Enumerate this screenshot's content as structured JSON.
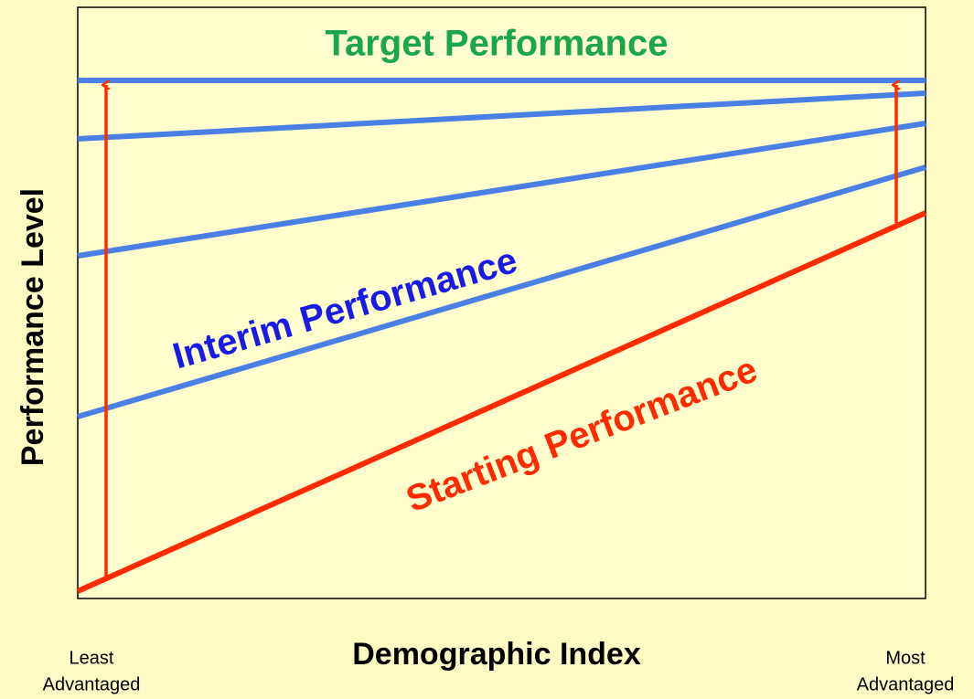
{
  "diagram": {
    "target_label": "Target Performance",
    "interim_label": "Interim Performance",
    "starting_label": "Starting Performance",
    "y_axis_label": "Performance Level",
    "x_axis_label": "Demographic Index",
    "x_left_label": [
      "Least",
      "Advantaged"
    ],
    "x_right_label": [
      "Most",
      "Advantaged"
    ]
  }
}
